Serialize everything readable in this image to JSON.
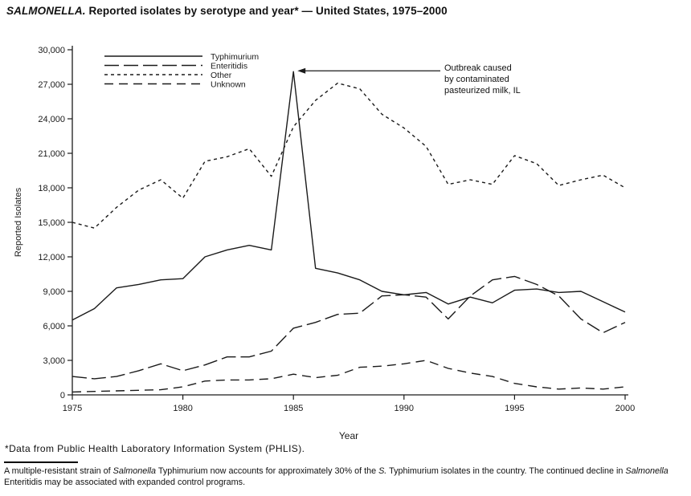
{
  "title": {
    "italic": "SALMONELLA.",
    "rest": " Reported isolates by serotype and year* — United States, 1975–2000"
  },
  "annotation": {
    "text": "Outbreak caused\nby contaminated\npasteurized milk, IL"
  },
  "footnote": "*Data from Public Health Laboratory Information System (PHLIS).",
  "note": {
    "segments": [
      {
        "text": "A multiple-resistant strain of ",
        "italic": false
      },
      {
        "text": "Salmonella",
        "italic": true
      },
      {
        "text": " Typhimurium now accounts for approximately 30% of the ",
        "italic": false
      },
      {
        "text": "S.",
        "italic": true
      },
      {
        "text": " Typhimurium isolates in the country. The continued decline in ",
        "italic": false
      },
      {
        "text": "Salmonella",
        "italic": true
      },
      {
        "text": " Enteritidis may be associated with expanded control programs.",
        "italic": false
      }
    ]
  },
  "chart_data": {
    "type": "line",
    "xlabel": "Year",
    "ylabel": "Reported Isolates",
    "xlim": [
      1975,
      2000
    ],
    "ylim": [
      0,
      30000
    ],
    "grid": false,
    "legend_position": "top-left",
    "line_color": "#1a1a1a",
    "x": [
      1975,
      1976,
      1977,
      1978,
      1979,
      1980,
      1981,
      1982,
      1983,
      1984,
      1985,
      1986,
      1987,
      1988,
      1989,
      1990,
      1991,
      1992,
      1993,
      1994,
      1995,
      1996,
      1997,
      1998,
      1999,
      2000
    ],
    "series": [
      {
        "name": "Typhimurium",
        "dash": "solid",
        "values": [
          6500,
          7500,
          9300,
          9600,
          10000,
          10100,
          12000,
          12600,
          13000,
          12600,
          28100,
          11000,
          10600,
          10000,
          9000,
          8700,
          8900,
          7900,
          8500,
          8000,
          9100,
          9200,
          8900,
          9000,
          8100,
          7200
        ]
      },
      {
        "name": "Enteritidis",
        "dash": "long",
        "values": [
          1600,
          1400,
          1600,
          2100,
          2700,
          2100,
          2600,
          3300,
          3300,
          3800,
          5800,
          6300,
          7000,
          7100,
          8600,
          8700,
          8500,
          6600,
          8600,
          10000,
          10300,
          9600,
          8600,
          6600,
          5400,
          6300
        ]
      },
      {
        "name": "Other",
        "dash": "short",
        "values": [
          15000,
          14500,
          16300,
          17800,
          18700,
          17100,
          20300,
          20700,
          21400,
          19000,
          23300,
          25600,
          27100,
          26600,
          24400,
          23200,
          21600,
          18300,
          18700,
          18300,
          20800,
          20100,
          18200,
          18700,
          19100,
          18000
        ]
      },
      {
        "name": "Unknown",
        "dash": "medium",
        "values": [
          250,
          300,
          350,
          400,
          450,
          700,
          1200,
          1300,
          1300,
          1400,
          1800,
          1500,
          1700,
          2400,
          2500,
          2700,
          3000,
          2300,
          1900,
          1600,
          1000,
          700,
          500,
          600,
          500,
          700
        ]
      }
    ],
    "yticks": [
      {
        "v": 0,
        "label": "0"
      },
      {
        "v": 3000,
        "label": "3,000"
      },
      {
        "v": 6000,
        "label": "6,000"
      },
      {
        "v": 9000,
        "label": "9,000"
      },
      {
        "v": 12000,
        "label": "12,000"
      },
      {
        "v": 15000,
        "label": "15,000"
      },
      {
        "v": 18000,
        "label": "18,000"
      },
      {
        "v": 21000,
        "label": "21,000"
      },
      {
        "v": 24000,
        "label": "24,000"
      },
      {
        "v": 27000,
        "label": "27,000"
      },
      {
        "v": 30000,
        "label": "30,000"
      }
    ],
    "xticks": [
      {
        "v": 1975,
        "label": "1975"
      },
      {
        "v": 1980,
        "label": "1980"
      },
      {
        "v": 1985,
        "label": "1985"
      },
      {
        "v": 1990,
        "label": "1990"
      },
      {
        "v": 1995,
        "label": "1995"
      },
      {
        "v": 2000,
        "label": "2000"
      }
    ]
  }
}
